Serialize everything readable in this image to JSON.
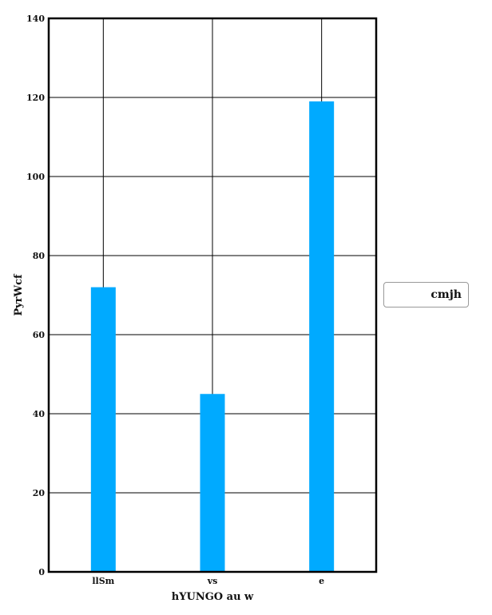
{
  "chart_data": {
    "type": "bar",
    "categories": [
      "llSm",
      "vs",
      "e"
    ],
    "series": [
      {
        "name": "cmjh",
        "values": [
          72,
          45,
          119
        ],
        "color": "#00aaff"
      }
    ],
    "xlabel": "hYUNGO au w",
    "ylabel": "PyrWcf",
    "ylim": [
      0,
      140
    ],
    "yticks": [
      0,
      20,
      40,
      60,
      80,
      100,
      120,
      140
    ],
    "grid": true,
    "legend_position": "right"
  },
  "legend": {
    "label": "cmjh"
  }
}
